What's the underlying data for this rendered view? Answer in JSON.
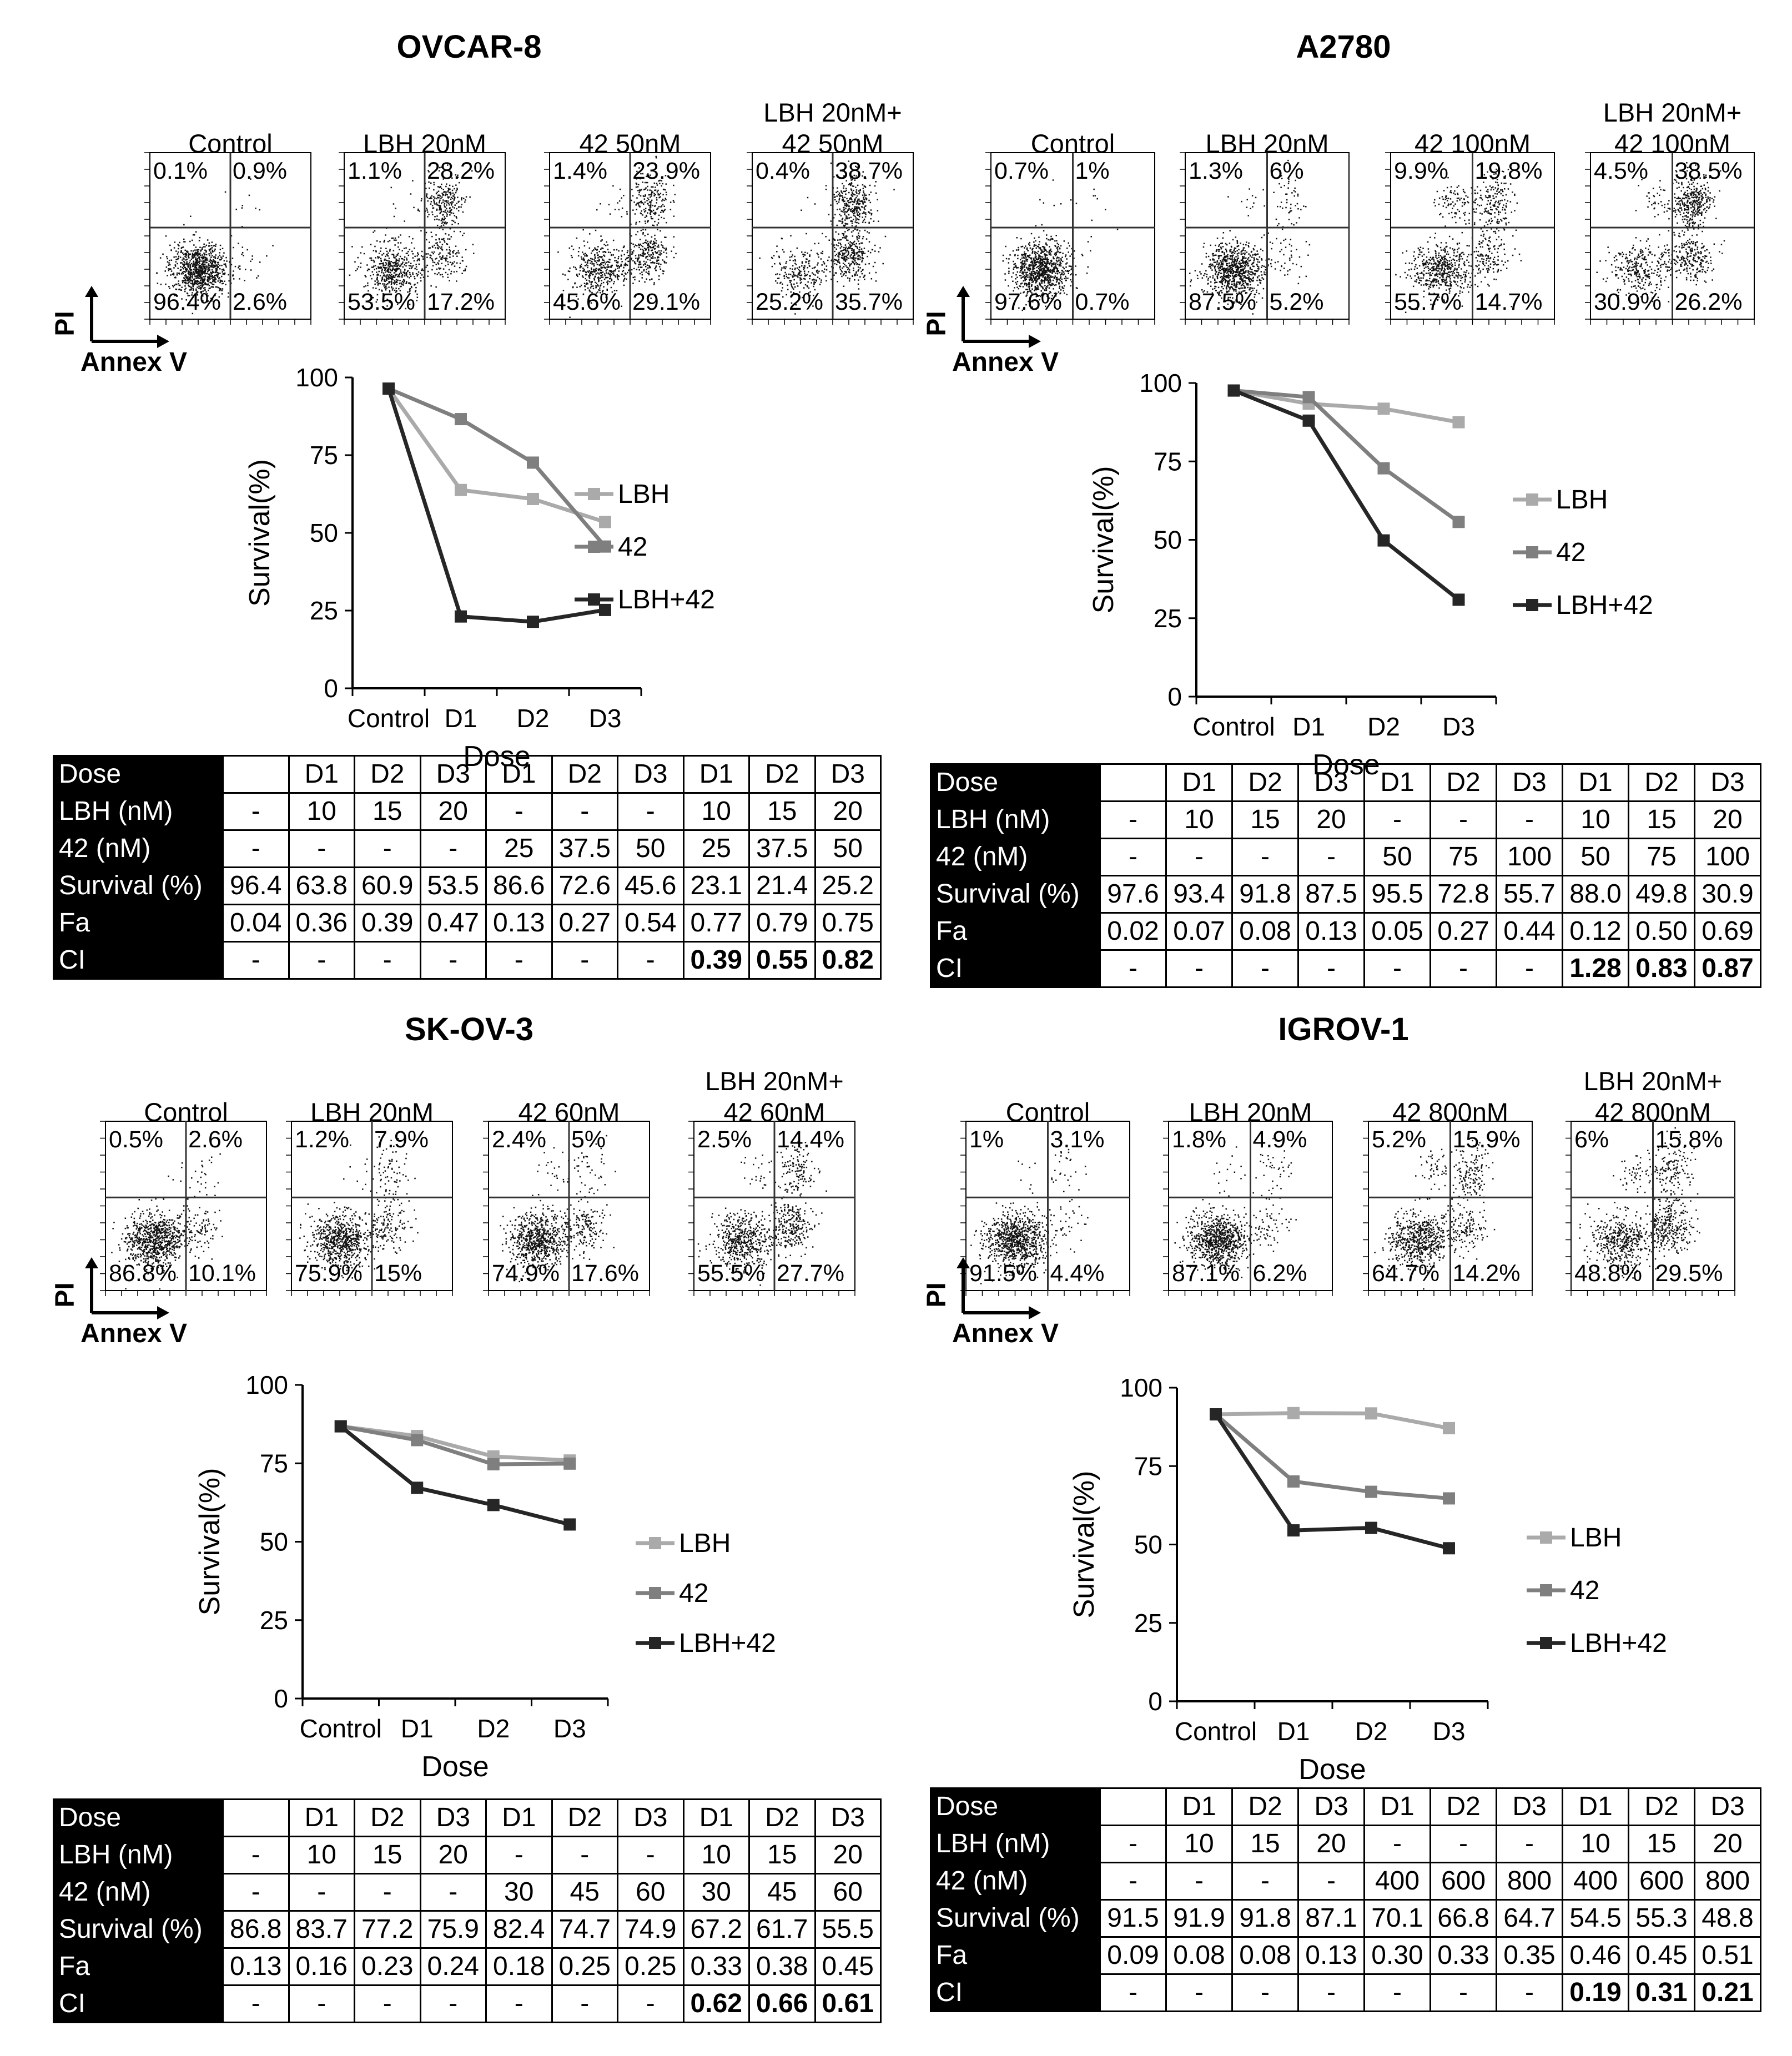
{
  "figure": {
    "axis_pi": "PI",
    "axis_annexv": "Annex V",
    "table_row_labels": [
      "Dose",
      "LBH (nM)",
      "42 (nM)",
      "Survival (%)",
      "Fa",
      "CI"
    ]
  },
  "panels": [
    {
      "title": "OVCAR-8",
      "flow": [
        {
          "label": "Control",
          "ul": "0.1%",
          "ur": "0.9%",
          "ll": "96.4%",
          "lr": "2.6%"
        },
        {
          "label": "LBH 20nM",
          "ul": "1.1%",
          "ur": "28.2%",
          "ll": "53.5%",
          "lr": "17.2%"
        },
        {
          "label": "42 50nM",
          "ul": "1.4%",
          "ur": "23.9%",
          "ll": "45.6%",
          "lr": "29.1%"
        },
        {
          "label": "LBH 20nM+\n42 50nM",
          "ul": "0.4%",
          "ur": "38.7%",
          "ll": "25.2%",
          "lr": "35.7%"
        }
      ],
      "chart_data": {
        "type": "line",
        "categories": [
          "Control",
          "D1",
          "D2",
          "D3"
        ],
        "series": [
          {
            "name": "LBH",
            "color": "#aaaaaa",
            "values": [
              96.4,
              63.8,
              60.9,
              53.5
            ]
          },
          {
            "name": "42",
            "color": "#7f7f7f",
            "values": [
              96.4,
              86.6,
              72.6,
              45.6
            ]
          },
          {
            "name": "LBH+42",
            "color": "#262626",
            "values": [
              96.4,
              23.1,
              21.4,
              25.2
            ]
          }
        ],
        "xlabel": "Dose",
        "ylabel": "Survival(%)",
        "yticks": [
          "0",
          "25",
          "50",
          "75",
          "100"
        ],
        "ylim": [
          0,
          100
        ]
      },
      "table": {
        "header": [
          "",
          "D1",
          "D2",
          "D3",
          "D1",
          "D2",
          "D3",
          "D1",
          "D2",
          "D3"
        ],
        "rows": [
          [
            "-",
            "10",
            "15",
            "20",
            "-",
            "-",
            "-",
            "10",
            "15",
            "20"
          ],
          [
            "-",
            "-",
            "-",
            "-",
            "25",
            "37.5",
            "50",
            "25",
            "37.5",
            "50"
          ],
          [
            "96.4",
            "63.8",
            "60.9",
            "53.5",
            "86.6",
            "72.6",
            "45.6",
            "23.1",
            "21.4",
            "25.2"
          ],
          [
            "0.04",
            "0.36",
            "0.39",
            "0.47",
            "0.13",
            "0.27",
            "0.54",
            "0.77",
            "0.79",
            "0.75"
          ],
          [
            "-",
            "-",
            "-",
            "-",
            "-",
            "-",
            "-",
            "0.39",
            "0.55",
            "0.82"
          ]
        ]
      }
    },
    {
      "title": "A2780",
      "flow": [
        {
          "label": "Control",
          "ul": "0.7%",
          "ur": "1%",
          "ll": "97.6%",
          "lr": "0.7%"
        },
        {
          "label": "LBH 20nM",
          "ul": "1.3%",
          "ur": "6%",
          "ll": "87.5%",
          "lr": "5.2%"
        },
        {
          "label": "42 100nM",
          "ul": "9.9%",
          "ur": "19.8%",
          "ll": "55.7%",
          "lr": "14.7%"
        },
        {
          "label": "LBH 20nM+\n42 100nM",
          "ul": "4.5%",
          "ur": "38.5%",
          "ll": "30.9%",
          "lr": "26.2%"
        }
      ],
      "chart_data": {
        "type": "line",
        "categories": [
          "Control",
          "D1",
          "D2",
          "D3"
        ],
        "series": [
          {
            "name": "LBH",
            "color": "#aaaaaa",
            "values": [
              97.6,
              93.4,
              91.8,
              87.5
            ]
          },
          {
            "name": "42",
            "color": "#7f7f7f",
            "values": [
              97.6,
              95.5,
              72.8,
              55.7
            ]
          },
          {
            "name": "LBH+42",
            "color": "#262626",
            "values": [
              97.6,
              88.0,
              49.8,
              30.9
            ]
          }
        ],
        "xlabel": "Dose",
        "ylabel": "Survival(%)",
        "yticks": [
          "0",
          "25",
          "50",
          "75",
          "100"
        ],
        "ylim": [
          0,
          100
        ]
      },
      "table": {
        "header": [
          "",
          "D1",
          "D2",
          "D3",
          "D1",
          "D2",
          "D3",
          "D1",
          "D2",
          "D3"
        ],
        "rows": [
          [
            "-",
            "10",
            "15",
            "20",
            "-",
            "-",
            "-",
            "10",
            "15",
            "20"
          ],
          [
            "-",
            "-",
            "-",
            "-",
            "50",
            "75",
            "100",
            "50",
            "75",
            "100"
          ],
          [
            "97.6",
            "93.4",
            "91.8",
            "87.5",
            "95.5",
            "72.8",
            "55.7",
            "88.0",
            "49.8",
            "30.9"
          ],
          [
            "0.02",
            "0.07",
            "0.08",
            "0.13",
            "0.05",
            "0.27",
            "0.44",
            "0.12",
            "0.50",
            "0.69"
          ],
          [
            "-",
            "-",
            "-",
            "-",
            "-",
            "-",
            "-",
            "1.28",
            "0.83",
            "0.87"
          ]
        ]
      }
    },
    {
      "title": "SK-OV-3",
      "flow": [
        {
          "label": "Control",
          "ul": "0.5%",
          "ur": "2.6%",
          "ll": "86.8%",
          "lr": "10.1%"
        },
        {
          "label": "LBH 20nM",
          "ul": "1.2%",
          "ur": "7.9%",
          "ll": "75.9%",
          "lr": "15%"
        },
        {
          "label": "42 60nM",
          "ul": "2.4%",
          "ur": "5%",
          "ll": "74.9%",
          "lr": "17.6%"
        },
        {
          "label": "LBH 20nM+\n42 60nM",
          "ul": "2.5%",
          "ur": "14.4%",
          "ll": "55.5%",
          "lr": "27.7%"
        }
      ],
      "chart_data": {
        "type": "line",
        "categories": [
          "Control",
          "D1",
          "D2",
          "D3"
        ],
        "series": [
          {
            "name": "LBH",
            "color": "#aaaaaa",
            "values": [
              86.8,
              83.7,
              77.2,
              75.9
            ]
          },
          {
            "name": "42",
            "color": "#7f7f7f",
            "values": [
              86.8,
              82.4,
              74.7,
              74.9
            ]
          },
          {
            "name": "LBH+42",
            "color": "#262626",
            "values": [
              86.8,
              67.2,
              61.7,
              55.5
            ]
          }
        ],
        "xlabel": "Dose",
        "ylabel": "Survival(%)",
        "yticks": [
          "0",
          "25",
          "50",
          "75",
          "100"
        ],
        "ylim": [
          0,
          100
        ]
      },
      "table": {
        "header": [
          "",
          "D1",
          "D2",
          "D3",
          "D1",
          "D2",
          "D3",
          "D1",
          "D2",
          "D3"
        ],
        "rows": [
          [
            "-",
            "10",
            "15",
            "20",
            "-",
            "-",
            "-",
            "10",
            "15",
            "20"
          ],
          [
            "-",
            "-",
            "-",
            "-",
            "30",
            "45",
            "60",
            "30",
            "45",
            "60"
          ],
          [
            "86.8",
            "83.7",
            "77.2",
            "75.9",
            "82.4",
            "74.7",
            "74.9",
            "67.2",
            "61.7",
            "55.5"
          ],
          [
            "0.13",
            "0.16",
            "0.23",
            "0.24",
            "0.18",
            "0.25",
            "0.25",
            "0.33",
            "0.38",
            "0.45"
          ],
          [
            "-",
            "-",
            "-",
            "-",
            "-",
            "-",
            "-",
            "0.62",
            "0.66",
            "0.61"
          ]
        ]
      }
    },
    {
      "title": "IGROV-1",
      "flow": [
        {
          "label": "Control",
          "ul": "1%",
          "ur": "3.1%",
          "ll": "91.5%",
          "lr": "4.4%"
        },
        {
          "label": "LBH 20nM",
          "ul": "1.8%",
          "ur": "4.9%",
          "ll": "87.1%",
          "lr": "6.2%"
        },
        {
          "label": "42 800nM",
          "ul": "5.2%",
          "ur": "15.9%",
          "ll": "64.7%",
          "lr": "14.2%"
        },
        {
          "label": "LBH 20nM+\n42 800nM",
          "ul": "6%",
          "ur": "15.8%",
          "ll": "48.8%",
          "lr": "29.5%"
        }
      ],
      "chart_data": {
        "type": "line",
        "categories": [
          "Control",
          "D1",
          "D2",
          "D3"
        ],
        "series": [
          {
            "name": "LBH",
            "color": "#aaaaaa",
            "values": [
              91.5,
              91.9,
              91.8,
              87.1
            ]
          },
          {
            "name": "42",
            "color": "#7f7f7f",
            "values": [
              91.5,
              70.1,
              66.8,
              64.7
            ]
          },
          {
            "name": "LBH+42",
            "color": "#262626",
            "values": [
              91.5,
              54.5,
              55.3,
              48.8
            ]
          }
        ],
        "xlabel": "Dose",
        "ylabel": "Survival(%)",
        "yticks": [
          "0",
          "25",
          "50",
          "75",
          "100"
        ],
        "ylim": [
          0,
          100
        ]
      },
      "table": {
        "header": [
          "",
          "D1",
          "D2",
          "D3",
          "D1",
          "D2",
          "D3",
          "D1",
          "D2",
          "D3"
        ],
        "rows": [
          [
            "-",
            "10",
            "15",
            "20",
            "-",
            "-",
            "-",
            "10",
            "15",
            "20"
          ],
          [
            "-",
            "-",
            "-",
            "-",
            "400",
            "600",
            "800",
            "400",
            "600",
            "800"
          ],
          [
            "91.5",
            "91.9",
            "91.8",
            "87.1",
            "70.1",
            "66.8",
            "64.7",
            "54.5",
            "55.3",
            "48.8"
          ],
          [
            "0.09",
            "0.08",
            "0.08",
            "0.13",
            "0.30",
            "0.33",
            "0.35",
            "0.46",
            "0.45",
            "0.51"
          ],
          [
            "-",
            "-",
            "-",
            "-",
            "-",
            "-",
            "-",
            "0.19",
            "0.31",
            "0.21"
          ]
        ]
      }
    }
  ]
}
